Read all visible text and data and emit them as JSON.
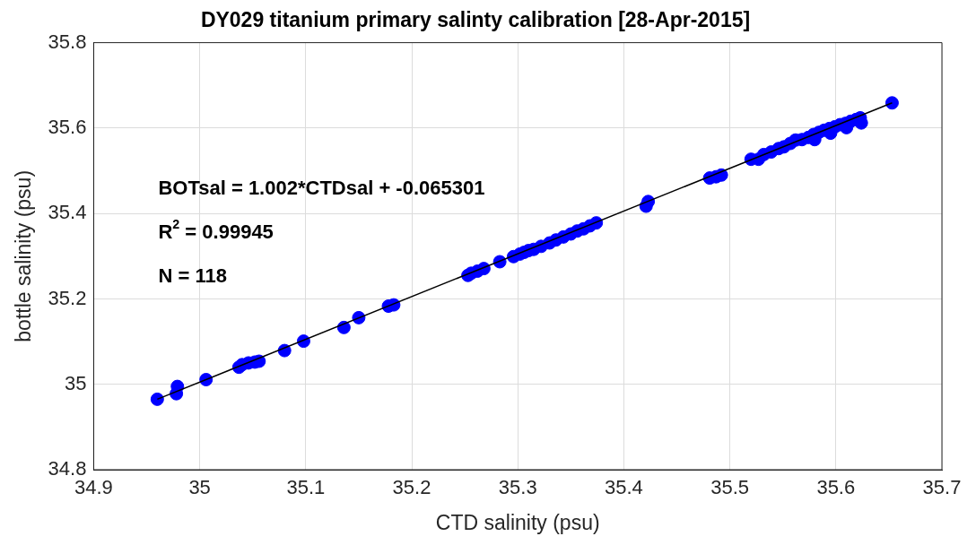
{
  "chart_data": {
    "type": "scatter",
    "title": "DY029 titanium primary salinty calibration [28-Apr-2015]",
    "xlabel": "CTD salinity (psu)",
    "ylabel": "bottle salinity (psu)",
    "annotations": [
      "BOTsal = 1.002*CTDsal + -0.065301",
      "R$^{2}$ = 0.99945",
      "N = 118"
    ],
    "xlim": [
      34.9,
      35.7
    ],
    "xticks": [
      34.9,
      35,
      35.1,
      35.2,
      35.3,
      35.4,
      35.5,
      35.6,
      35.7
    ],
    "ylim": [
      34.8,
      35.8
    ],
    "yticks": [
      34.8,
      35,
      35.2,
      35.4,
      35.6,
      35.8
    ],
    "grid": true,
    "legend": false,
    "marker": "circle",
    "series": [
      {
        "color": "#0000ff",
        "x": [
          34.96,
          34.978,
          34.979,
          35.006,
          35.037,
          35.04,
          35.046,
          35.052,
          35.056,
          35.08,
          35.098,
          35.136,
          35.15,
          35.178,
          35.183,
          35.253,
          35.256,
          35.262,
          35.268,
          35.283,
          35.296,
          35.302,
          35.306,
          35.31,
          35.315,
          35.322,
          35.33,
          35.336,
          35.343,
          35.35,
          35.356,
          35.362,
          35.368,
          35.374,
          35.421,
          35.423,
          35.481,
          35.487,
          35.492,
          35.52,
          35.527,
          35.532,
          35.539,
          35.546,
          35.551,
          35.557,
          35.562,
          35.568,
          35.574,
          35.579,
          35.584,
          35.589,
          35.594,
          35.599,
          35.604,
          35.609,
          35.614,
          35.619,
          35.623,
          35.624,
          35.61,
          35.595,
          35.58,
          35.653
        ],
        "values": [
          34.965,
          34.978,
          34.995,
          35.011,
          35.04,
          35.046,
          35.05,
          35.052,
          35.054,
          35.079,
          35.101,
          35.133,
          35.156,
          35.183,
          35.186,
          35.255,
          35.26,
          35.265,
          35.271,
          35.287,
          35.299,
          35.305,
          35.309,
          35.313,
          35.316,
          35.323,
          35.331,
          35.338,
          35.345,
          35.352,
          35.359,
          35.364,
          35.371,
          35.378,
          35.417,
          35.428,
          35.483,
          35.486,
          35.49,
          35.527,
          35.527,
          35.538,
          35.544,
          35.552,
          35.556,
          35.564,
          35.572,
          35.573,
          35.578,
          35.585,
          35.59,
          35.595,
          35.599,
          35.603,
          35.608,
          35.611,
          35.616,
          35.62,
          35.624,
          35.612,
          35.601,
          35.588,
          35.573,
          35.659
        ]
      },
      {
        "type": "line",
        "color": "#000000",
        "marker": "none",
        "x": [
          34.96,
          35.653
        ],
        "values": [
          34.965,
          35.659
        ]
      }
    ]
  }
}
